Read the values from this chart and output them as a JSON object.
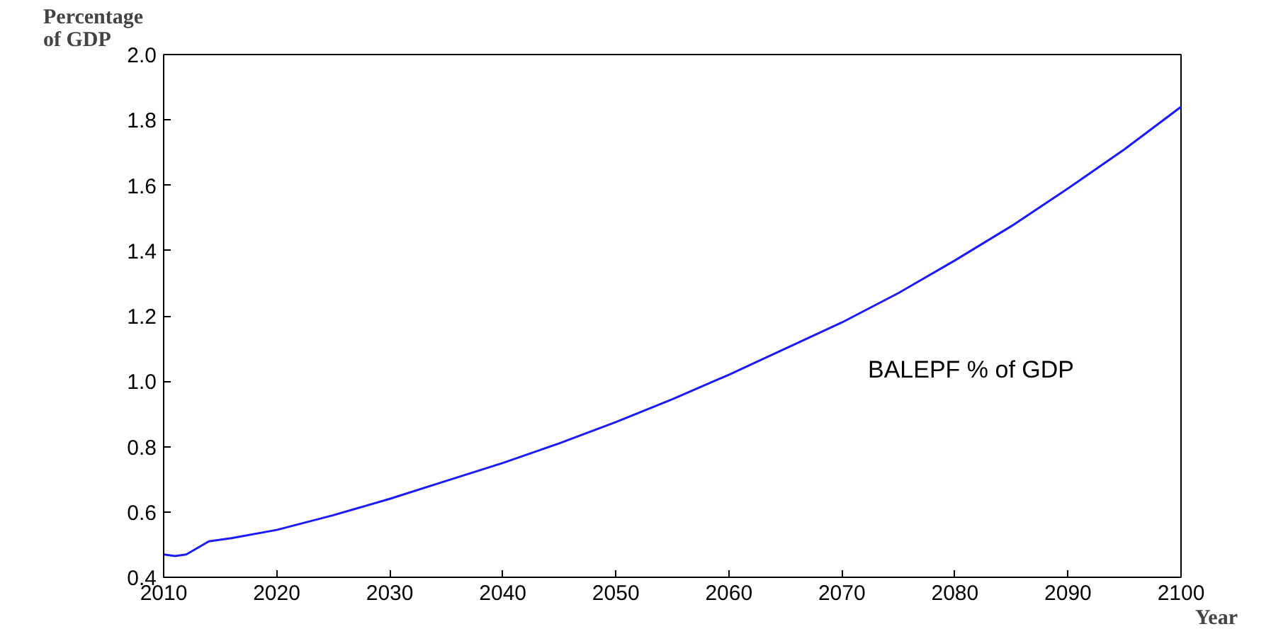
{
  "chart_data": {
    "type": "line",
    "ylabel": "Percentage\nof GDP",
    "xlabel": "Year",
    "x": [
      2010,
      2011,
      2012,
      2013,
      2014,
      2016,
      2020,
      2025,
      2030,
      2035,
      2040,
      2045,
      2050,
      2055,
      2060,
      2065,
      2070,
      2075,
      2080,
      2085,
      2090,
      2095,
      2100
    ],
    "series": [
      {
        "name": "BALEPF % of GDP",
        "color": "#1a1aff",
        "values": [
          0.47,
          0.465,
          0.47,
          0.49,
          0.51,
          0.52,
          0.545,
          0.59,
          0.64,
          0.695,
          0.75,
          0.81,
          0.875,
          0.945,
          1.02,
          1.1,
          1.18,
          1.27,
          1.37,
          1.475,
          1.59,
          1.71,
          1.84
        ]
      }
    ],
    "xlim": [
      2010,
      2100
    ],
    "ylim": [
      0.4,
      2.0
    ],
    "xticks": [
      2010,
      2020,
      2030,
      2040,
      2050,
      2060,
      2070,
      2080,
      2090,
      2100
    ],
    "yticks": [
      0.4,
      0.6,
      0.8,
      {
        "value": 1.0,
        "label": "1.0"
      },
      1.2,
      1.4,
      1.6,
      1.8,
      {
        "value": 2.0,
        "label": "2.0"
      }
    ],
    "grid": false,
    "legend": false,
    "marker": "none",
    "line_style": "solid"
  }
}
